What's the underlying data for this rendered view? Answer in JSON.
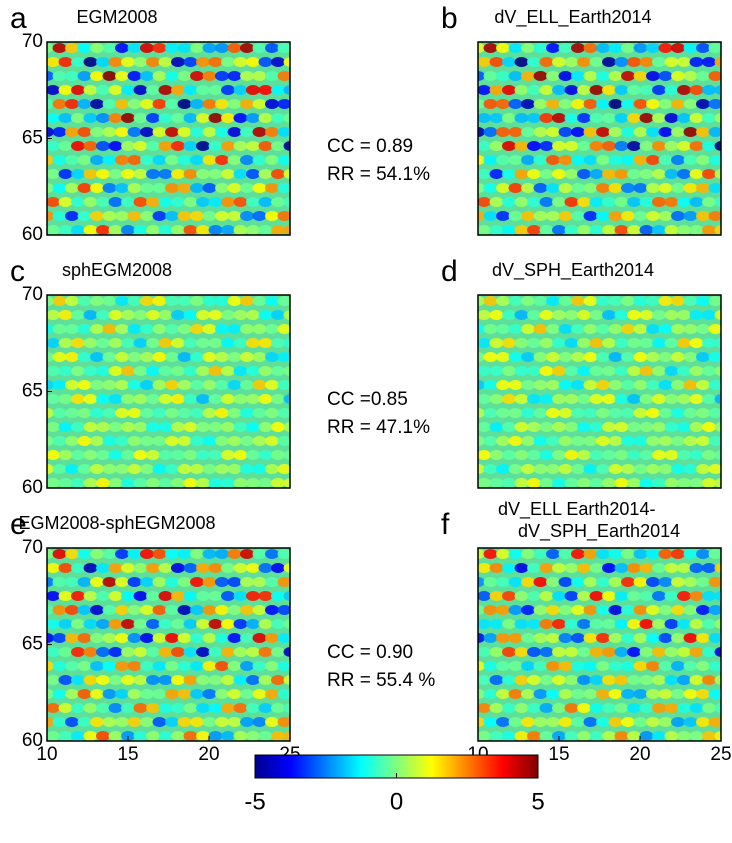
{
  "chart_data": [
    {
      "type": "heatmap",
      "letter": "a",
      "title": "EGM2008",
      "xlim": [
        10,
        25
      ],
      "ylim": [
        60,
        70
      ],
      "yticks": [
        60,
        65,
        70
      ]
    },
    {
      "type": "heatmap",
      "letter": "b",
      "title": "dV_ELL_Earth2014",
      "xlim": [
        10,
        25
      ],
      "ylim": [
        60,
        70
      ]
    },
    {
      "type": "heatmap",
      "letter": "c",
      "title": "sphEGM2008",
      "xlim": [
        10,
        25
      ],
      "ylim": [
        60,
        70
      ],
      "yticks": [
        60,
        65,
        70
      ]
    },
    {
      "type": "heatmap",
      "letter": "d",
      "title": "dV_SPH_Earth2014",
      "xlim": [
        10,
        25
      ],
      "ylim": [
        60,
        70
      ]
    },
    {
      "type": "heatmap",
      "letter": "e",
      "title": "EGM2008-sphEGM2008",
      "xlim": [
        10,
        25
      ],
      "ylim": [
        60,
        70
      ],
      "yticks": [
        60,
        65,
        70
      ],
      "xticks": [
        10,
        15,
        20,
        25
      ]
    },
    {
      "type": "heatmap",
      "letter": "f",
      "title": [
        "dV_ELL  Earth2014-",
        "dV_SPH_Earth2014"
      ],
      "xlim": [
        10,
        25
      ],
      "ylim": [
        60,
        70
      ],
      "xticks": [
        10,
        15,
        20,
        25
      ]
    }
  ],
  "comparisons": [
    {
      "lines": [
        "CC = 0.89",
        "RR = 54.1%"
      ]
    },
    {
      "lines": [
        "CC =0.85",
        "RR = 47.1%"
      ]
    },
    {
      "lines": [
        "CC = 0.90",
        "RR = 55.4 %"
      ]
    }
  ],
  "colorbar": {
    "lim": [
      -5,
      5
    ],
    "ticks": [
      -5,
      0,
      5
    ]
  }
}
